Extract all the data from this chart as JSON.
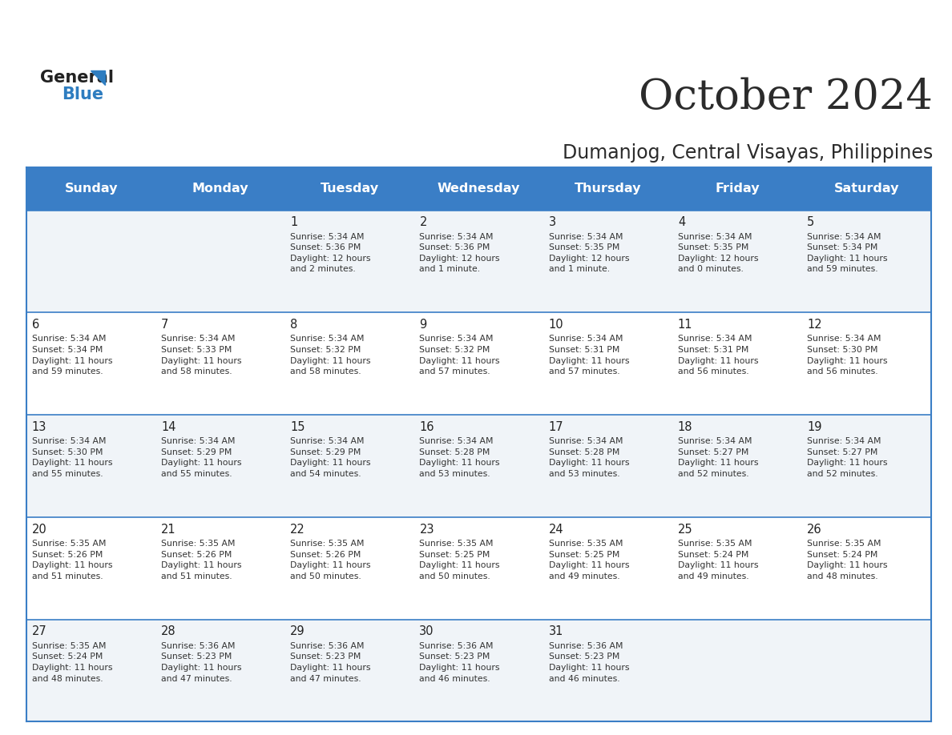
{
  "title": "October 2024",
  "subtitle": "Dumanjog, Central Visayas, Philippines",
  "header_bg": "#3A7EC6",
  "header_text": "#FFFFFF",
  "day_names": [
    "Sunday",
    "Monday",
    "Tuesday",
    "Wednesday",
    "Thursday",
    "Friday",
    "Saturday"
  ],
  "row_bg_even": "#F0F4F8",
  "row_bg_odd": "#FFFFFF",
  "cell_text_color": "#333333",
  "date_num_color": "#222222",
  "divider_color": "#3A7EC6",
  "logo_general_color": "#222222",
  "logo_blue_color": "#2E7DC0",
  "calendar": [
    [
      {
        "day": null,
        "text": ""
      },
      {
        "day": null,
        "text": ""
      },
      {
        "day": 1,
        "text": "Sunrise: 5:34 AM\nSunset: 5:36 PM\nDaylight: 12 hours\nand 2 minutes."
      },
      {
        "day": 2,
        "text": "Sunrise: 5:34 AM\nSunset: 5:36 PM\nDaylight: 12 hours\nand 1 minute."
      },
      {
        "day": 3,
        "text": "Sunrise: 5:34 AM\nSunset: 5:35 PM\nDaylight: 12 hours\nand 1 minute."
      },
      {
        "day": 4,
        "text": "Sunrise: 5:34 AM\nSunset: 5:35 PM\nDaylight: 12 hours\nand 0 minutes."
      },
      {
        "day": 5,
        "text": "Sunrise: 5:34 AM\nSunset: 5:34 PM\nDaylight: 11 hours\nand 59 minutes."
      }
    ],
    [
      {
        "day": 6,
        "text": "Sunrise: 5:34 AM\nSunset: 5:34 PM\nDaylight: 11 hours\nand 59 minutes."
      },
      {
        "day": 7,
        "text": "Sunrise: 5:34 AM\nSunset: 5:33 PM\nDaylight: 11 hours\nand 58 minutes."
      },
      {
        "day": 8,
        "text": "Sunrise: 5:34 AM\nSunset: 5:32 PM\nDaylight: 11 hours\nand 58 minutes."
      },
      {
        "day": 9,
        "text": "Sunrise: 5:34 AM\nSunset: 5:32 PM\nDaylight: 11 hours\nand 57 minutes."
      },
      {
        "day": 10,
        "text": "Sunrise: 5:34 AM\nSunset: 5:31 PM\nDaylight: 11 hours\nand 57 minutes."
      },
      {
        "day": 11,
        "text": "Sunrise: 5:34 AM\nSunset: 5:31 PM\nDaylight: 11 hours\nand 56 minutes."
      },
      {
        "day": 12,
        "text": "Sunrise: 5:34 AM\nSunset: 5:30 PM\nDaylight: 11 hours\nand 56 minutes."
      }
    ],
    [
      {
        "day": 13,
        "text": "Sunrise: 5:34 AM\nSunset: 5:30 PM\nDaylight: 11 hours\nand 55 minutes."
      },
      {
        "day": 14,
        "text": "Sunrise: 5:34 AM\nSunset: 5:29 PM\nDaylight: 11 hours\nand 55 minutes."
      },
      {
        "day": 15,
        "text": "Sunrise: 5:34 AM\nSunset: 5:29 PM\nDaylight: 11 hours\nand 54 minutes."
      },
      {
        "day": 16,
        "text": "Sunrise: 5:34 AM\nSunset: 5:28 PM\nDaylight: 11 hours\nand 53 minutes."
      },
      {
        "day": 17,
        "text": "Sunrise: 5:34 AM\nSunset: 5:28 PM\nDaylight: 11 hours\nand 53 minutes."
      },
      {
        "day": 18,
        "text": "Sunrise: 5:34 AM\nSunset: 5:27 PM\nDaylight: 11 hours\nand 52 minutes."
      },
      {
        "day": 19,
        "text": "Sunrise: 5:34 AM\nSunset: 5:27 PM\nDaylight: 11 hours\nand 52 minutes."
      }
    ],
    [
      {
        "day": 20,
        "text": "Sunrise: 5:35 AM\nSunset: 5:26 PM\nDaylight: 11 hours\nand 51 minutes."
      },
      {
        "day": 21,
        "text": "Sunrise: 5:35 AM\nSunset: 5:26 PM\nDaylight: 11 hours\nand 51 minutes."
      },
      {
        "day": 22,
        "text": "Sunrise: 5:35 AM\nSunset: 5:26 PM\nDaylight: 11 hours\nand 50 minutes."
      },
      {
        "day": 23,
        "text": "Sunrise: 5:35 AM\nSunset: 5:25 PM\nDaylight: 11 hours\nand 50 minutes."
      },
      {
        "day": 24,
        "text": "Sunrise: 5:35 AM\nSunset: 5:25 PM\nDaylight: 11 hours\nand 49 minutes."
      },
      {
        "day": 25,
        "text": "Sunrise: 5:35 AM\nSunset: 5:24 PM\nDaylight: 11 hours\nand 49 minutes."
      },
      {
        "day": 26,
        "text": "Sunrise: 5:35 AM\nSunset: 5:24 PM\nDaylight: 11 hours\nand 48 minutes."
      }
    ],
    [
      {
        "day": 27,
        "text": "Sunrise: 5:35 AM\nSunset: 5:24 PM\nDaylight: 11 hours\nand 48 minutes."
      },
      {
        "day": 28,
        "text": "Sunrise: 5:36 AM\nSunset: 5:23 PM\nDaylight: 11 hours\nand 47 minutes."
      },
      {
        "day": 29,
        "text": "Sunrise: 5:36 AM\nSunset: 5:23 PM\nDaylight: 11 hours\nand 47 minutes."
      },
      {
        "day": 30,
        "text": "Sunrise: 5:36 AM\nSunset: 5:23 PM\nDaylight: 11 hours\nand 46 minutes."
      },
      {
        "day": 31,
        "text": "Sunrise: 5:36 AM\nSunset: 5:23 PM\nDaylight: 11 hours\nand 46 minutes."
      },
      {
        "day": null,
        "text": ""
      },
      {
        "day": null,
        "text": ""
      }
    ]
  ]
}
